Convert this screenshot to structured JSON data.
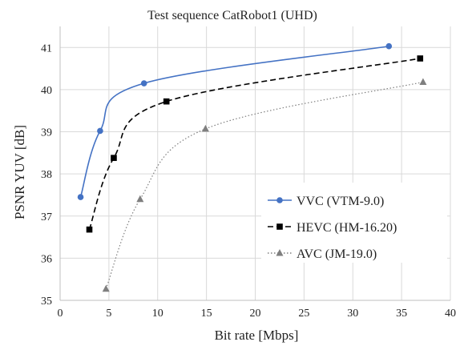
{
  "chart_data": {
    "type": "line",
    "title": "Test sequence CatRobot1 (UHD)",
    "xlabel": "Bit rate [Mbps]",
    "ylabel": "PSNR YUV [dB]",
    "xlim": [
      0,
      40
    ],
    "ylim": [
      35,
      41.5
    ],
    "xticks": [
      0,
      5,
      10,
      15,
      20,
      25,
      30,
      35,
      40
    ],
    "yticks": [
      35,
      36,
      37,
      38,
      39,
      40,
      41
    ],
    "grid": true,
    "legend_position": "right",
    "series": [
      {
        "name": "VVC (VTM-9.0)",
        "color": "#4472c4",
        "marker": "circle",
        "line_style": "solid",
        "x": [
          2.1,
          4.1,
          8.6,
          33.7
        ],
        "y": [
          37.45,
          39.02,
          40.15,
          41.03
        ]
      },
      {
        "name": "HEVC (HM-16.20)",
        "color": "#000000",
        "marker": "square",
        "line_style": "dashed",
        "x": [
          3.0,
          5.5,
          10.9,
          36.9
        ],
        "y": [
          36.68,
          38.38,
          39.72,
          40.74
        ]
      },
      {
        "name": "AVC (JM-19.0)",
        "color": "#7f7f7f",
        "marker": "triangle",
        "line_style": "dotted",
        "x": [
          4.7,
          8.2,
          14.9,
          37.2
        ],
        "y": [
          35.27,
          37.4,
          39.07,
          40.18
        ]
      }
    ]
  }
}
